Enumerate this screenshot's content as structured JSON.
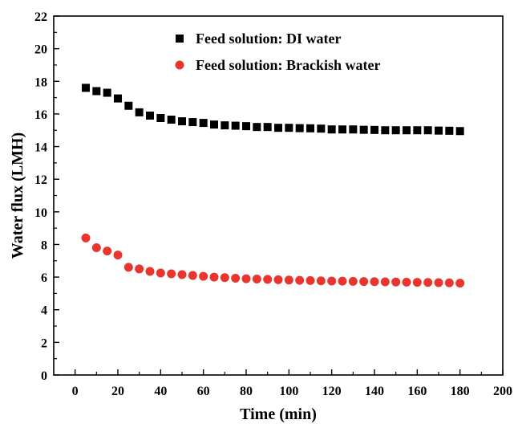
{
  "chart_data": {
    "type": "scatter",
    "xlabel": "Time (min)",
    "ylabel": "Water flux (LMH)",
    "xlim": [
      -10,
      200
    ],
    "ylim": [
      0,
      22
    ],
    "xticks": [
      "0",
      "20",
      "40",
      "60",
      "80",
      "100",
      "120",
      "140",
      "160",
      "180",
      "200"
    ],
    "yticks": [
      "0",
      "2",
      "4",
      "6",
      "8",
      "10",
      "12",
      "14",
      "16",
      "18",
      "20",
      "22"
    ],
    "legend_position": "top-right",
    "grid": false,
    "series": [
      {
        "name": "Feed solution: DI water",
        "marker": "square",
        "color": "#000000",
        "x": [
          5,
          10,
          15,
          20,
          25,
          30,
          35,
          40,
          45,
          50,
          55,
          60,
          65,
          70,
          75,
          80,
          85,
          90,
          95,
          100,
          105,
          110,
          115,
          120,
          125,
          130,
          135,
          140,
          145,
          150,
          155,
          160,
          165,
          170,
          175,
          180
        ],
        "y": [
          17.6,
          17.4,
          17.3,
          16.95,
          16.5,
          16.1,
          15.9,
          15.75,
          15.65,
          15.55,
          15.5,
          15.45,
          15.35,
          15.3,
          15.28,
          15.25,
          15.2,
          15.2,
          15.15,
          15.15,
          15.13,
          15.12,
          15.1,
          15.05,
          15.05,
          15.05,
          15.03,
          15.02,
          15.0,
          15.0,
          15.0,
          15.0,
          15.0,
          14.98,
          14.97,
          14.95
        ]
      },
      {
        "name": "Feed solution: Brackish water",
        "marker": "circle",
        "color": "#e8352e",
        "x": [
          5,
          10,
          15,
          20,
          25,
          30,
          35,
          40,
          45,
          50,
          55,
          60,
          65,
          70,
          75,
          80,
          85,
          90,
          95,
          100,
          105,
          110,
          115,
          120,
          125,
          130,
          135,
          140,
          145,
          150,
          155,
          160,
          165,
          170,
          175,
          180
        ],
        "y": [
          8.4,
          7.8,
          7.6,
          7.35,
          6.6,
          6.5,
          6.35,
          6.25,
          6.2,
          6.15,
          6.1,
          6.05,
          6.0,
          5.97,
          5.93,
          5.9,
          5.88,
          5.86,
          5.84,
          5.82,
          5.8,
          5.79,
          5.77,
          5.76,
          5.75,
          5.74,
          5.73,
          5.72,
          5.71,
          5.7,
          5.69,
          5.68,
          5.67,
          5.66,
          5.65,
          5.63
        ]
      }
    ]
  }
}
